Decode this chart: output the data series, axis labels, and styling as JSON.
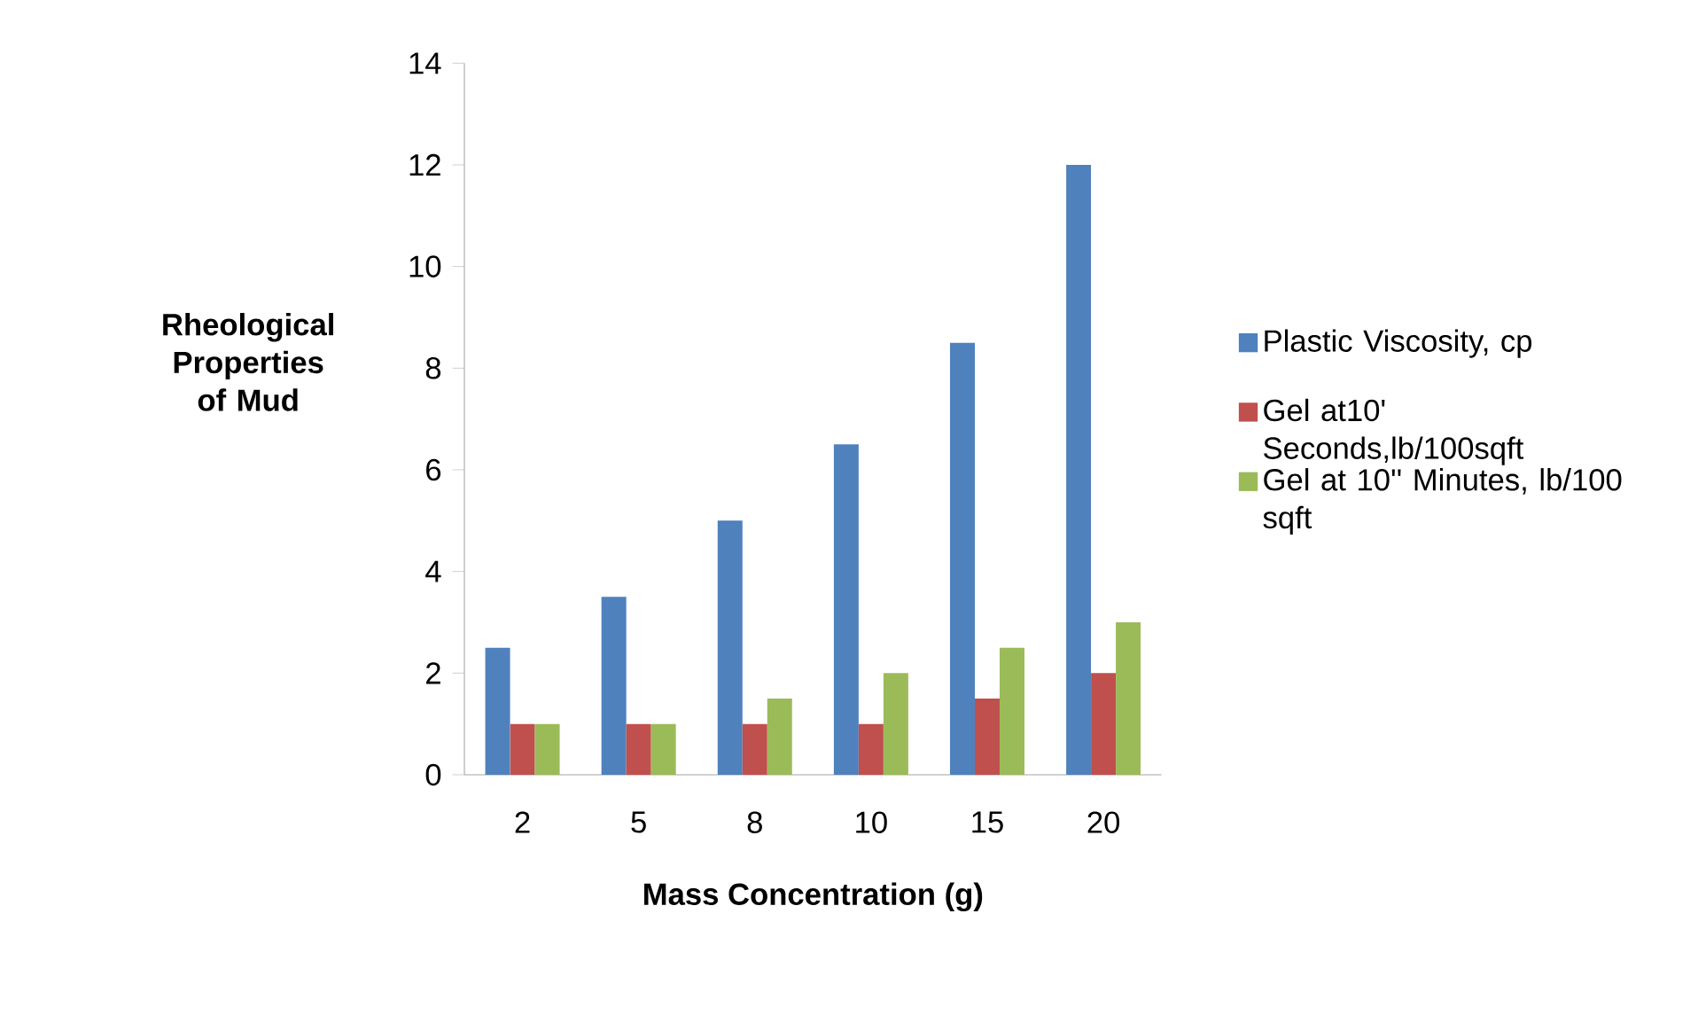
{
  "chart_data": {
    "type": "bar",
    "xlabel": "Mass Concentration (g)",
    "ylabel": "Rheological Properties of Mud",
    "categories": [
      "2",
      "5",
      "8",
      "10",
      "15",
      "20"
    ],
    "series": [
      {
        "name": "Plastic Viscosity, cp",
        "color": "#4f81bd",
        "values": [
          2.5,
          3.5,
          5,
          6.5,
          8.5,
          12
        ]
      },
      {
        "name": "Gel at10' Seconds,lb/100sqft",
        "color": "#c0504d",
        "values": [
          1,
          1,
          1,
          1,
          1.5,
          2
        ]
      },
      {
        "name": "Gel at 10'' Minutes, lb/100 sqft",
        "color": "#9bbb59",
        "values": [
          1,
          1,
          1.5,
          2,
          2.5,
          3
        ]
      }
    ],
    "ylim": [
      0,
      14
    ],
    "yticks": [
      0,
      2,
      4,
      6,
      8,
      10,
      12,
      14
    ],
    "grid": false,
    "legend": "right"
  }
}
